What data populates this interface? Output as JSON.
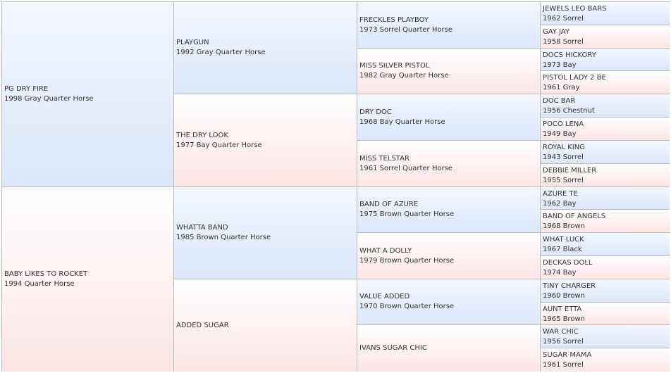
{
  "colors": {
    "sire": "#dce7fb",
    "dam": "#fde5e5",
    "border": "#b9b9b9"
  },
  "generations": [
    [
      {
        "name": "PG DRY FIRE",
        "info": "1998 Gray Quarter Horse"
      },
      {
        "name": "BABY LIKES TO ROCKET",
        "info": "1994 Quarter Horse"
      }
    ],
    [
      {
        "name": "PLAYGUN",
        "info": "1992 Gray Quarter Horse"
      },
      {
        "name": "THE DRY LOOK",
        "info": "1977 Bay Quarter Horse"
      },
      {
        "name": "WHATTA BAND",
        "info": "1985 Brown Quarter Horse"
      },
      {
        "name": "ADDED SUGAR",
        "info": ""
      }
    ],
    [
      {
        "name": "FRECKLES PLAYBOY",
        "info": "1973 Sorrel Quarter Horse"
      },
      {
        "name": "MISS SILVER PISTOL",
        "info": "1982 Gray Quarter Horse"
      },
      {
        "name": "DRY DOC",
        "info": "1968 Bay Quarter Horse"
      },
      {
        "name": "MISS TELSTAR",
        "info": "1961 Sorrel Quarter Horse"
      },
      {
        "name": "BAND OF AZURE",
        "info": "1975 Brown Quarter Horse"
      },
      {
        "name": "WHAT A DOLLY",
        "info": "1979 Brown Quarter Horse"
      },
      {
        "name": "VALUE ADDED",
        "info": "1970 Brown Quarter Horse"
      },
      {
        "name": "IVANS SUGAR CHIC",
        "info": ""
      }
    ],
    [
      {
        "name": "JEWELS LEO BARS",
        "info": "1962 Sorrel"
      },
      {
        "name": "GAY JAY",
        "info": "1958 Sorrel"
      },
      {
        "name": "DOCS HICKORY",
        "info": "1973 Bay"
      },
      {
        "name": "PISTOL LADY 2 BE",
        "info": "1961 Gray"
      },
      {
        "name": "DOC BAR",
        "info": "1956 Chestnut"
      },
      {
        "name": "POCO LENA",
        "info": "1949 Bay"
      },
      {
        "name": "ROYAL KING",
        "info": "1943 Sorrel"
      },
      {
        "name": "DEBBIE MILLER",
        "info": "1955 Sorrel"
      },
      {
        "name": "AZURE TE",
        "info": "1962 Bay"
      },
      {
        "name": "BAND OF ANGELS",
        "info": "1968 Brown"
      },
      {
        "name": "WHAT LUCK",
        "info": "1967 Black"
      },
      {
        "name": "DECKAS DOLL",
        "info": "1974 Bay"
      },
      {
        "name": "TINY CHARGER",
        "info": "1960 Brown"
      },
      {
        "name": "AUNT ETTA",
        "info": "1965 Brown"
      },
      {
        "name": "WAR CHIC",
        "info": "1956 Sorrel"
      },
      {
        "name": "SUGAR MAMA",
        "info": "1961 Sorrel"
      }
    ]
  ]
}
